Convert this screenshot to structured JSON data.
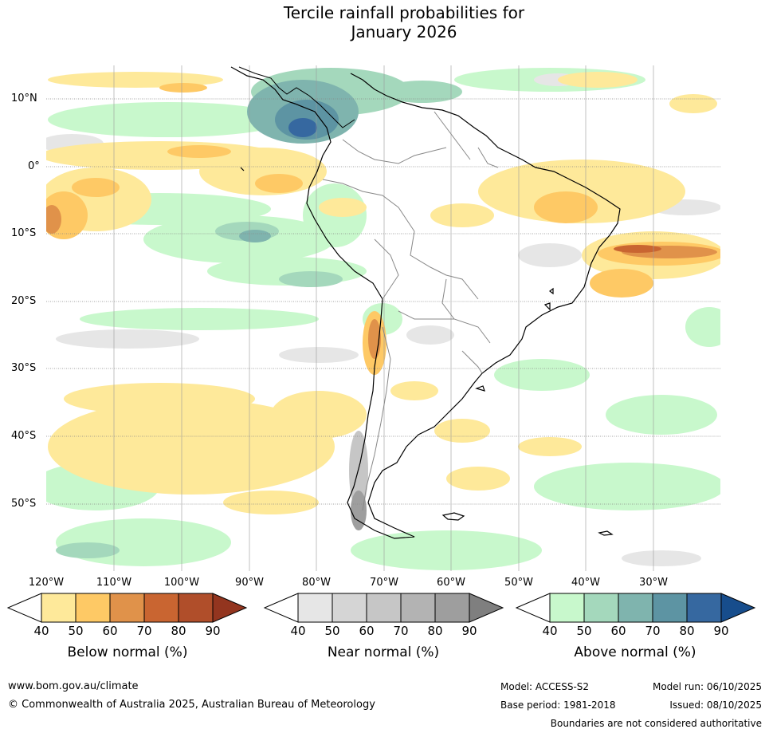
{
  "title_line1": "Tercile rainfall probabilities for",
  "title_line2": "January 2026",
  "lat_labels": [
    "10°N",
    "0°",
    "10°S",
    "20°S",
    "30°S",
    "40°S",
    "50°S"
  ],
  "lon_labels": [
    "120°W",
    "110°W",
    "100°W",
    "90°W",
    "80°W",
    "70°W",
    "60°W",
    "50°W",
    "40°W",
    "30°W"
  ],
  "legends": [
    {
      "title": "Below normal (%)",
      "ticks": [
        "40",
        "50",
        "60",
        "70",
        "80",
        "90"
      ],
      "colors": [
        "#ffffff",
        "#fee99a",
        "#fec965",
        "#e0924a",
        "#c96531",
        "#b04e2a",
        "#93351f"
      ]
    },
    {
      "title": "Near normal (%)",
      "ticks": [
        "40",
        "50",
        "60",
        "70",
        "80",
        "90"
      ],
      "colors": [
        "#ffffff",
        "#e6e6e6",
        "#d5d5d5",
        "#c6c6c6",
        "#b3b3b3",
        "#9e9e9e",
        "#7f7f7f"
      ]
    },
    {
      "title": "Above normal (%)",
      "ticks": [
        "40",
        "50",
        "60",
        "70",
        "80",
        "90"
      ],
      "colors": [
        "#ffffff",
        "#c8f8cc",
        "#a4d8bc",
        "#7fb4ae",
        "#5d94a3",
        "#3668a0",
        "#174d8c"
      ]
    }
  ],
  "footer": {
    "url": "www.bom.gov.au/climate",
    "copyright": "© Commonwealth of Australia 2025, Australian Bureau of Meteorology",
    "model": "Model: ACCESS-S2",
    "base_period": "Base period: 1981-2018",
    "model_run": "Model run: 06/10/2025",
    "issued": "Issued: 08/10/2025",
    "disclaimer": "Boundaries are not considered authoritative"
  }
}
